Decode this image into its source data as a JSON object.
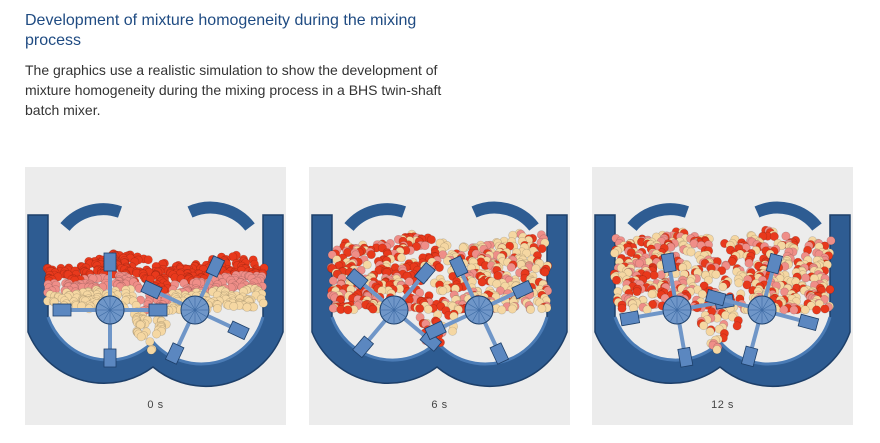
{
  "header": {
    "title": "Development of mixture homogeneity during the mixing process",
    "description": "The graphics use a realistic simulation to show the development of mixture homogeneity during the mixing process in a BHS twin-shaft batch mixer."
  },
  "panels": [
    {
      "caption": "0 s",
      "stage": 0
    },
    {
      "caption": "6 s",
      "stage": 1
    },
    {
      "caption": "12 s",
      "stage": 2
    }
  ],
  "colors": {
    "title": "#1f4b82",
    "text": "#333333",
    "panel_bg": "#ececec",
    "trough": "#2e5c92",
    "trough_dark": "#1d3f69",
    "shaft": "#6f96c8",
    "paddle": "#5b87c0",
    "particle_red": "#e8391c",
    "particle_pink": "#ef8e88",
    "particle_cream": "#f5d7a2"
  }
}
